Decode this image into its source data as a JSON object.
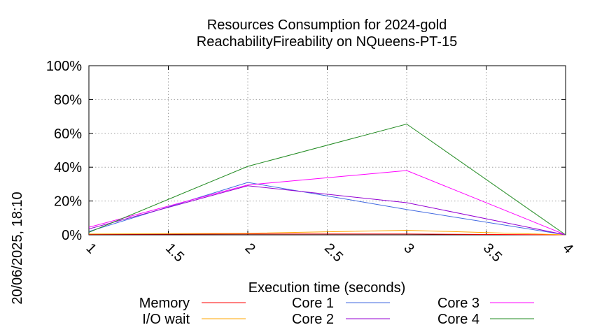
{
  "chart_data": {
    "type": "line",
    "title_lines": [
      "Resources Consumption for 2024-gold",
      "ReachabilityFireability on NQueens-PT-15"
    ],
    "xlabel": "Execution time (seconds)",
    "ylabel": "",
    "timestamp": "20/06/2025, 18:10",
    "xlim": [
      1,
      4
    ],
    "ylim": [
      0,
      100
    ],
    "xticks": [
      1,
      1.5,
      2,
      2.5,
      3,
      3.5,
      4
    ],
    "xtick_labels": [
      "1",
      "1.5",
      "2",
      "2.5",
      "3",
      "3.5",
      "4"
    ],
    "yticks": [
      0,
      20,
      40,
      60,
      80,
      100
    ],
    "ytick_labels": [
      "0%",
      "20%",
      "40%",
      "60%",
      "80%",
      "100%"
    ],
    "grid": true,
    "legend_position": "bottom",
    "series": [
      {
        "name": "Memory",
        "color": "#ff0000",
        "x": [
          1,
          2,
          3,
          4
        ],
        "y": [
          0.3,
          0.5,
          0.5,
          0
        ]
      },
      {
        "name": "I/O wait",
        "color": "#ffa500",
        "x": [
          1,
          2,
          3,
          4
        ],
        "y": [
          0.5,
          0.9,
          2.7,
          0
        ]
      },
      {
        "name": "Core 1",
        "color": "#4169e1",
        "x": [
          1,
          2,
          3,
          4
        ],
        "y": [
          2.0,
          31.0,
          15.0,
          0
        ]
      },
      {
        "name": "Core 2",
        "color": "#9400d3",
        "x": [
          1,
          2,
          3,
          4
        ],
        "y": [
          3.5,
          29.0,
          19.0,
          0
        ]
      },
      {
        "name": "Core 3",
        "color": "#ff00ff",
        "x": [
          1,
          2,
          3,
          4
        ],
        "y": [
          4.5,
          29.5,
          38.0,
          0
        ]
      },
      {
        "name": "Core 4",
        "color": "#228b22",
        "x": [
          1,
          2,
          3,
          4
        ],
        "y": [
          1.5,
          40.5,
          65.5,
          0
        ]
      }
    ]
  }
}
